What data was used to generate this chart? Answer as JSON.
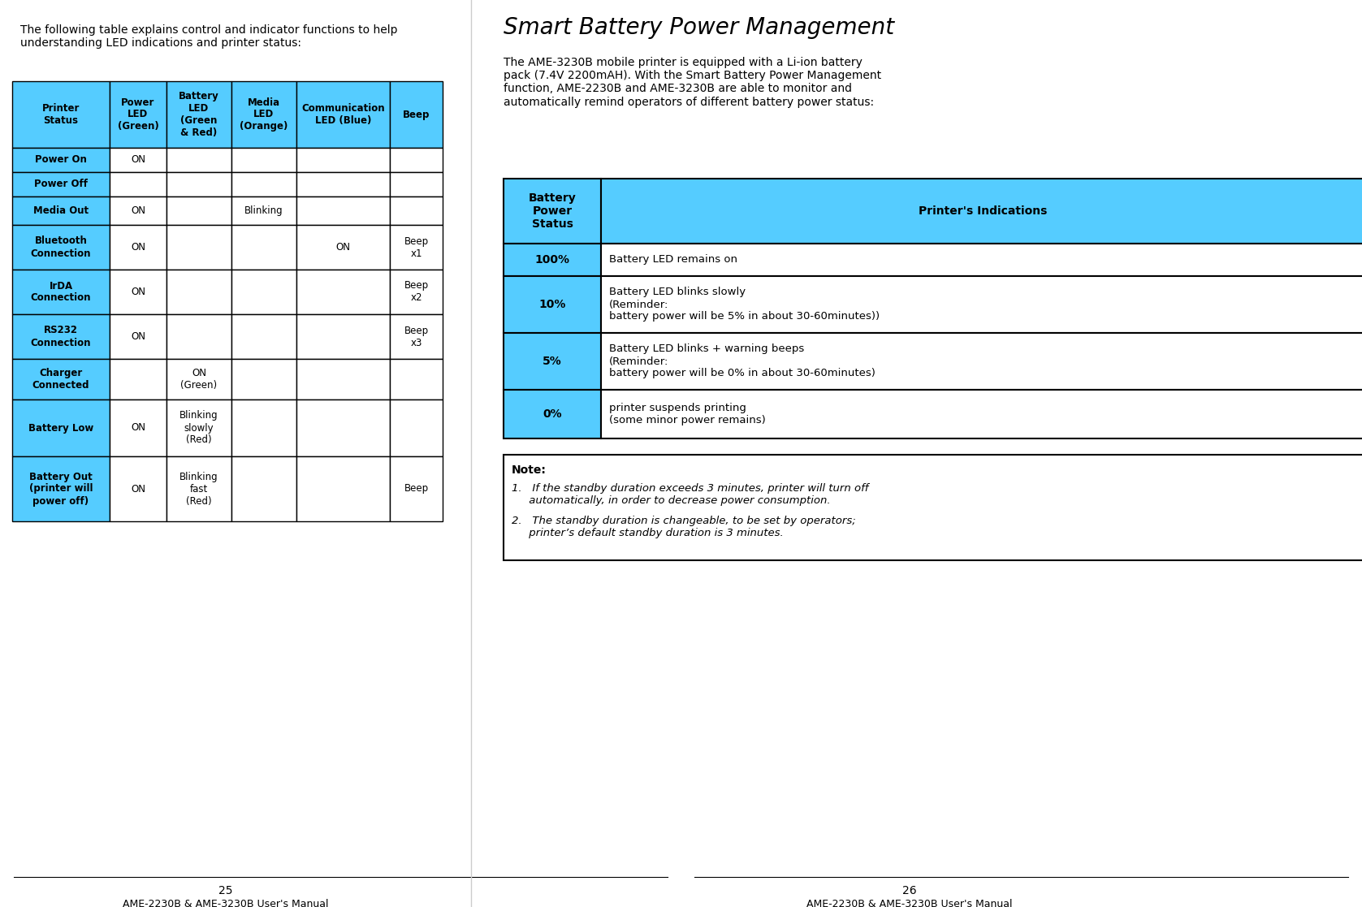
{
  "page_bg": "#ffffff",
  "left_intro_text": "The following table explains control and indicator functions to help\nunderstanding LED indications and printer status:",
  "right_title": "Smart Battery Power Management",
  "right_intro": "The AME-3230B mobile printer is equipped with a Li-ion battery\npack (7.4V 2200mAH). With the Smart Battery Power Management\nfunction, AME-2230B and AME-3230B are able to monitor and\nautomatically remind operators of different battery power status:",
  "cyan_color": "#55CCFF",
  "header_bg": "#55CCFF",
  "table1_headers": [
    "Printer\nStatus",
    "Power\nLED\n(Green)",
    "Battery\nLED\n(Green\n& Red)",
    "Media\nLED\n(Orange)",
    "Communication\nLED (Blue)",
    "Beep"
  ],
  "table1_rows": [
    [
      "Power On",
      "ON",
      "",
      "",
      "",
      ""
    ],
    [
      "Power Off",
      "",
      "",
      "",
      "",
      ""
    ],
    [
      "Media Out",
      "ON",
      "",
      "Blinking",
      "",
      ""
    ],
    [
      "Bluetooth\nConnection",
      "ON",
      "",
      "",
      "ON",
      "Beep\nx1"
    ],
    [
      "IrDA\nConnection",
      "ON",
      "",
      "",
      "",
      "Beep\nx2"
    ],
    [
      "RS232\nConnection",
      "ON",
      "",
      "",
      "",
      "Beep\nx3"
    ],
    [
      "Charger\nConnected",
      "",
      "ON\n(Green)",
      "",
      "",
      ""
    ],
    [
      "Battery Low",
      "ON",
      "Blinking\nslowly\n(Red)",
      "",
      "",
      ""
    ],
    [
      "Battery Out\n(printer will\npower off)",
      "ON",
      "Blinking\nfast\n(Red)",
      "",
      "",
      "Beep"
    ]
  ],
  "table2_headers": [
    "Battery\nPower\nStatus",
    "Printer's Indications"
  ],
  "table2_rows": [
    [
      "100%",
      "Battery LED remains on"
    ],
    [
      "10%",
      "Battery LED blinks slowly\n(Reminder:\nbattery power will be 5% in about 30-60minutes))"
    ],
    [
      "5%",
      "Battery LED blinks + warning beeps\n(Reminder:\nbattery power will be 0% in about 30-60minutes)"
    ],
    [
      "0%",
      "printer suspends printing\n(some minor power remains)"
    ]
  ],
  "note_title": "Note:",
  "note_lines": [
    "1.   If the standby duration exceeds 3 minutes, printer will turn off\n     automatically, in order to decrease power consumption.",
    "2.   The standby duration is changeable, to be set by operators;\n     printer’s default standby duration is 3 minutes."
  ],
  "footer_left_page": "25",
  "footer_right_page": "26",
  "footer_text": "AME-2230B & AME-3230B User's Manual"
}
